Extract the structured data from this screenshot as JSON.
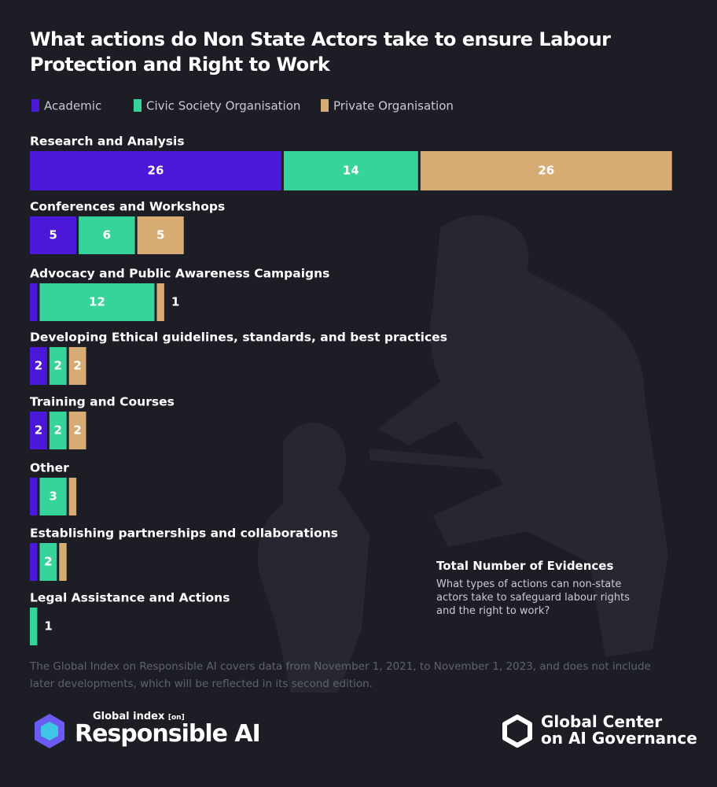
{
  "chart_data": {
    "type": "stacked-bar-horizontal",
    "title": [
      "What actions do",
      "Non State Actors",
      "take to ensure Labour Protection and Right to Work"
    ],
    "categories": [
      "Research and Analysis",
      "Conferences and Workshops",
      "Advocacy and Public Awareness Campaigns",
      "Developing Ethical guidelines, standards, and best practices",
      "Training and Courses",
      "Other",
      "Establishing partnerships and collaborations",
      "Legal Assistance and Actions"
    ],
    "series": [
      {
        "name": "Academic",
        "color": "#4b17d9",
        "values": [
          26,
          5,
          1,
          2,
          2,
          1,
          1,
          0
        ],
        "value_labels": [
          26,
          5,
          null,
          2,
          2,
          null,
          null,
          null
        ]
      },
      {
        "name": "Civic Society Organisation",
        "color": "#36d39a",
        "values": [
          14,
          6,
          12,
          2,
          2,
          3,
          2,
          1
        ],
        "value_labels": [
          14,
          6,
          12,
          2,
          2,
          3,
          2,
          1
        ]
      },
      {
        "name": "Private Organisation",
        "color": "#d6ab74",
        "values": [
          26,
          5,
          1,
          2,
          2,
          1,
          1,
          0
        ],
        "value_labels": [
          26,
          5,
          1,
          2,
          2,
          null,
          null,
          null
        ]
      }
    ],
    "legend": "top-left"
  },
  "annotation": {
    "title": "Total Number of Evidences",
    "text": "What types of actions can non-state actors take to safeguard labour rights and the right to work?"
  },
  "note": "The Global Index on Responsible AI covers data from November 1, 2021, to November 1, 2023, and does not include later developments, which will be reflected in its second edition.",
  "logos": {
    "left_small": "Global index",
    "left_tag": "[on]",
    "left_big": "Responsible AI",
    "right_line1": "Global Center",
    "right_line2": "on AI Governance"
  }
}
